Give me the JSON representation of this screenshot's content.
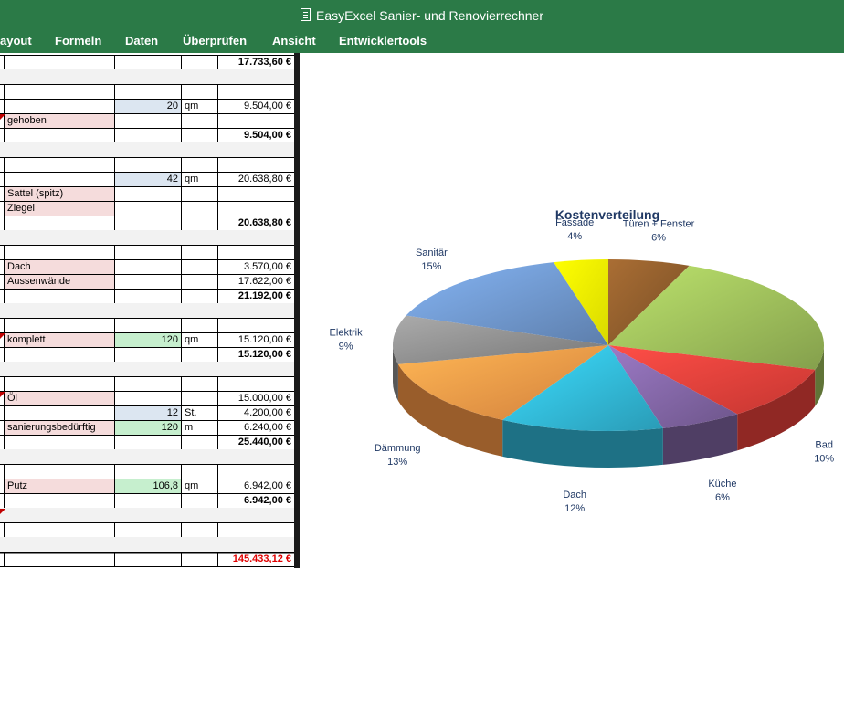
{
  "window": {
    "title": "EasyExcel Sanier- und Renovierrechner"
  },
  "ribbon": {
    "tabs": [
      "ayout",
      "Formeln",
      "Daten",
      "Überprüfen",
      "Ansicht",
      "Entwicklertools"
    ]
  },
  "sheet": {
    "rows": [
      {
        "b": "",
        "c": "",
        "d": "",
        "e": "17.733,60 €",
        "bold": true
      },
      {
        "gray": true
      },
      {},
      {
        "c": "20",
        "d": "qm",
        "e": "9.504,00 €",
        "cfill": "blue"
      },
      {
        "b": "gehoben",
        "bfill": "pink",
        "tri": true
      },
      {
        "e": "9.504,00 €",
        "bold": true
      },
      {
        "gray": true
      },
      {},
      {
        "c": "42",
        "d": "qm",
        "e": "20.638,80 €",
        "cfill": "blue"
      },
      {
        "b": "Sattel (spitz)",
        "bfill": "pink"
      },
      {
        "b": "Ziegel",
        "bfill": "pink"
      },
      {
        "e": "20.638,80 €",
        "bold": true
      },
      {
        "gray": true
      },
      {},
      {
        "b": "Dach",
        "e": "3.570,00 €",
        "bfill": "pink"
      },
      {
        "b": "Aussenwände",
        "e": "17.622,00 €",
        "bfill": "pink"
      },
      {
        "e": "21.192,00 €",
        "bold": true
      },
      {
        "gray": true
      },
      {},
      {
        "b": "komplett",
        "c": "120",
        "d": "qm",
        "e": "15.120,00 €",
        "bfill": "pink",
        "cfill": "green",
        "tri": true
      },
      {
        "e": "15.120,00 €",
        "bold": true
      },
      {
        "gray": true
      },
      {},
      {
        "b": "Öl",
        "e": "15.000,00 €",
        "bfill": "pink",
        "tri": true
      },
      {
        "c": "12",
        "d": "St.",
        "e": "4.200,00 €",
        "cfill": "blue"
      },
      {
        "b": "sanierungsbedürftig",
        "c": "120",
        "d": "m",
        "e": "6.240,00 €",
        "bfill": "pink",
        "cfill": "green"
      },
      {
        "e": "25.440,00 €",
        "bold": true
      },
      {
        "gray": true
      },
      {},
      {
        "b": "Putz",
        "c": "106,8",
        "d": "qm",
        "e": "6.942,00 €",
        "bfill": "pink",
        "cfill": "green"
      },
      {
        "e": "6.942,00 €",
        "bold": true
      },
      {
        "gray": true,
        "tri": true
      },
      {},
      {
        "gray": true
      },
      {
        "e": "145.433,12 €",
        "bold": true,
        "red": true,
        "topborder": true
      }
    ]
  },
  "chart_data": {
    "type": "pie",
    "title": "Kostenverteilung",
    "slices": [
      {
        "name": "Türen + Fenster",
        "pct_label": "6%",
        "value": 6,
        "color": "#8b5a2b"
      },
      {
        "name": "",
        "pct_label": "",
        "value": 23,
        "color": "#9bbb59"
      },
      {
        "name": "Bad",
        "pct_label": "10%",
        "value": 10,
        "color": "#e8403a"
      },
      {
        "name": "Küche",
        "pct_label": "6%",
        "value": 6,
        "color": "#8064a2"
      },
      {
        "name": "Dach",
        "pct_label": "12%",
        "value": 12,
        "color": "#31b6d6"
      },
      {
        "name": "Dämmung",
        "pct_label": "13%",
        "value": 13,
        "color": "#f79646"
      },
      {
        "name": "Elektrik",
        "pct_label": "9%",
        "value": 9,
        "color": "#8c8c8c"
      },
      {
        "name": "Sanitär",
        "pct_label": "15%",
        "value": 15,
        "color": "#6d94c9"
      },
      {
        "name": "Fassade",
        "pct_label": "4%",
        "value": 4,
        "color": "#ffff00"
      }
    ]
  }
}
